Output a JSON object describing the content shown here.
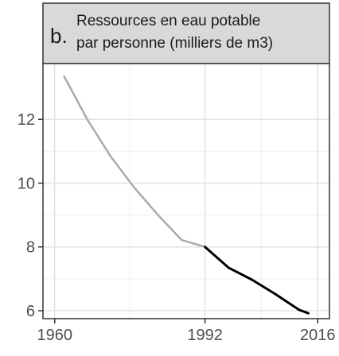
{
  "chart_data": {
    "type": "line",
    "panel_letter": "b.",
    "title_lines": [
      "Ressources en eau potable",
      "par personne (milliers de m3)"
    ],
    "xlabel": "",
    "ylabel": "",
    "xlim": [
      1957.5,
      2018.5
    ],
    "ylim": [
      5.75,
      13.75
    ],
    "x_ticks": [
      1960,
      1992,
      2016
    ],
    "x_tick_labels": [
      "1960",
      "1992",
      "2016"
    ],
    "y_ticks": [
      6,
      8,
      10,
      12
    ],
    "y_tick_labels": [
      "6",
      "8",
      "10",
      "12"
    ],
    "grid": true,
    "legend": "none",
    "series": [
      {
        "color": "#aaaaaa",
        "x": [
          1962,
          1967,
          1972,
          1977,
          1982,
          1987,
          1992
        ],
        "y": [
          13.35,
          11.98,
          10.82,
          9.85,
          9.0,
          8.22,
          8.0
        ]
      },
      {
        "color": "#000000",
        "x": [
          1992,
          1997,
          2002,
          2007,
          2012,
          2014
        ],
        "y": [
          8.0,
          7.35,
          6.97,
          6.52,
          6.03,
          5.92
        ]
      }
    ]
  }
}
